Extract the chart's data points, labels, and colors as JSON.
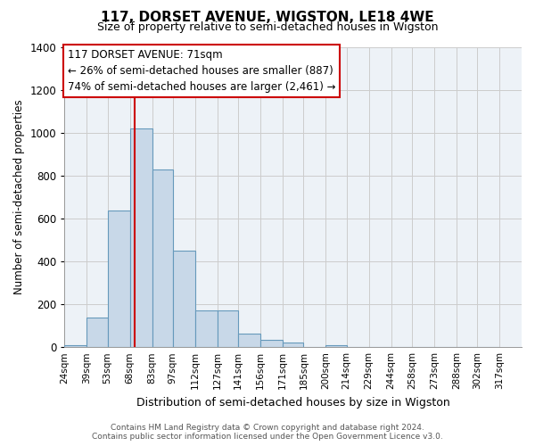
{
  "title": "117, DORSET AVENUE, WIGSTON, LE18 4WE",
  "subtitle": "Size of property relative to semi-detached houses in Wigston",
  "xlabel": "Distribution of semi-detached houses by size in Wigston",
  "ylabel": "Number of semi-detached properties",
  "bin_labels": [
    "24sqm",
    "39sqm",
    "53sqm",
    "68sqm",
    "83sqm",
    "97sqm",
    "112sqm",
    "127sqm",
    "141sqm",
    "156sqm",
    "171sqm",
    "185sqm",
    "200sqm",
    "214sqm",
    "229sqm",
    "244sqm",
    "258sqm",
    "273sqm",
    "288sqm",
    "302sqm",
    "317sqm"
  ],
  "bin_edges": [
    24,
    39,
    53,
    68,
    83,
    97,
    112,
    127,
    141,
    156,
    171,
    185,
    200,
    214,
    229,
    244,
    258,
    273,
    288,
    302,
    317
  ],
  "bar_heights": [
    10,
    140,
    635,
    1020,
    830,
    450,
    170,
    170,
    65,
    35,
    20,
    0,
    10,
    0,
    0,
    0,
    0,
    0,
    0,
    0
  ],
  "bar_color": "#c8d8e8",
  "bar_edge_color": "#6699bb",
  "grid_color": "#cccccc",
  "property_line_x": 71,
  "vline_color": "#cc0000",
  "annotation_text_line1": "117 DORSET AVENUE: 71sqm",
  "annotation_text_line2": "← 26% of semi-detached houses are smaller (887)",
  "annotation_text_line3": "74% of semi-detached houses are larger (2,461) →",
  "annotation_box_facecolor": "#ffffff",
  "annotation_box_edgecolor": "#cc0000",
  "ylim": [
    0,
    1400
  ],
  "yticks": [
    0,
    200,
    400,
    600,
    800,
    1000,
    1200,
    1400
  ],
  "footer_line1": "Contains HM Land Registry data © Crown copyright and database right 2024.",
  "footer_line2": "Contains public sector information licensed under the Open Government Licence v3.0.",
  "bg_color": "#ffffff",
  "plot_bg_color": "#edf2f7"
}
